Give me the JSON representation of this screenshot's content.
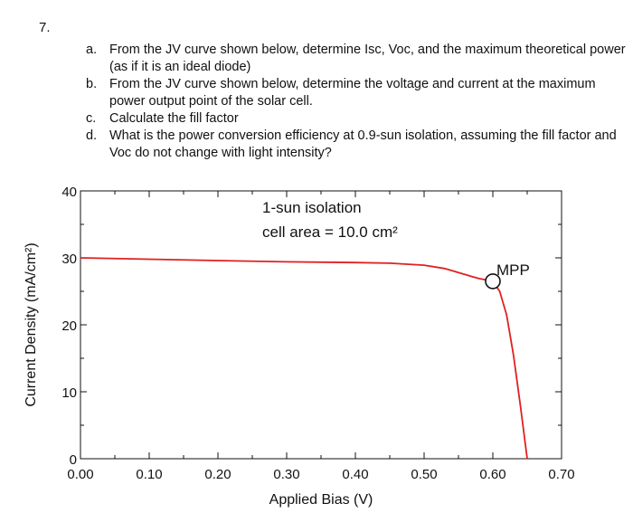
{
  "question_number": "7.",
  "items": [
    {
      "label": "a.",
      "text": "From the JV curve shown below, determine Isc, Voc, and the maximum theoretical power (as if it is an ideal diode)"
    },
    {
      "label": "b.",
      "text": "From the JV curve shown below, determine the voltage and current at the maximum power output point of the solar cell."
    },
    {
      "label": "c.",
      "text": "Calculate the fill factor"
    },
    {
      "label": "d.",
      "text": "What is the power conversion efficiency at 0.9-sun isolation, assuming the fill factor and Voc do not change with light intensity?"
    }
  ],
  "chart_data": {
    "type": "line",
    "xlabel": "Applied Bias (V)",
    "ylabel": "Current Density (mA/cm²)",
    "xlim": [
      0,
      0.7
    ],
    "ylim": [
      0,
      40
    ],
    "x_ticks": [
      "0.00",
      "0.10",
      "0.20",
      "0.30",
      "0.40",
      "0.50",
      "0.60",
      "0.70"
    ],
    "y_ticks": [
      "0",
      "10",
      "20",
      "30",
      "40"
    ],
    "annotations": [
      "1-sun isolation",
      "cell area = 10.0 cm²"
    ],
    "mpp_label": "MPP",
    "mpp_point": {
      "x": 0.6,
      "y": 26.5
    },
    "line_color": "#e02020",
    "series": [
      {
        "x": [
          0.0,
          0.1,
          0.2,
          0.3,
          0.4,
          0.45,
          0.5,
          0.53,
          0.55,
          0.57,
          0.58,
          0.59,
          0.6,
          0.61,
          0.62,
          0.63,
          0.64,
          0.65
        ],
        "y": [
          30.0,
          29.8,
          29.6,
          29.4,
          29.3,
          29.2,
          28.9,
          28.4,
          27.8,
          27.2,
          26.9,
          26.7,
          26.5,
          25.0,
          21.5,
          15.5,
          8.0,
          0.0
        ]
      }
    ]
  }
}
